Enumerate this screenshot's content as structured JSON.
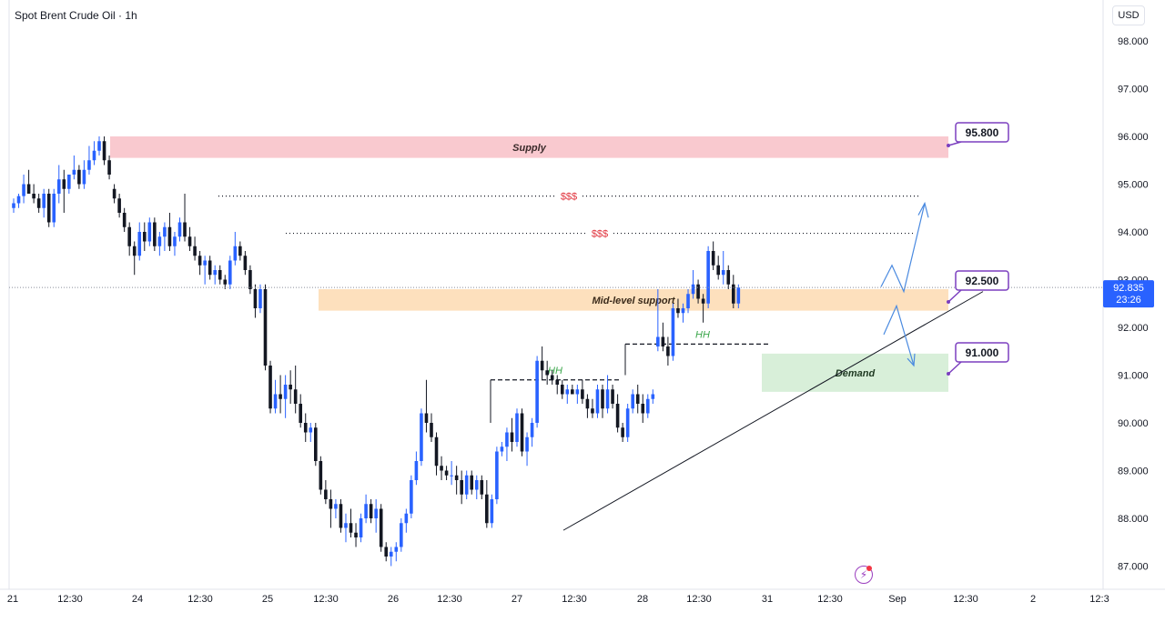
{
  "header": {
    "symbol_title": "Spot Brent Crude Oil · 1h",
    "currency_button": "USD"
  },
  "chart_data": {
    "type": "candlestick",
    "y_axis": {
      "ticks": [
        "87.000",
        "88.000",
        "89.000",
        "90.000",
        "91.000",
        "92.000",
        "93.000",
        "94.000",
        "95.000",
        "96.000",
        "97.000",
        "98.000"
      ]
    },
    "x_axis": {
      "ticks": [
        "21",
        "12:30",
        "24",
        "12:30",
        "25",
        "12:30",
        "26",
        "12:30",
        "27",
        "12:30",
        "28",
        "12:30",
        "31",
        "12:30",
        "Sep",
        "12:30",
        "2",
        "12:3"
      ]
    },
    "last_price": {
      "value": "92.835",
      "countdown": "23:26"
    },
    "zones": [
      {
        "label": "Supply",
        "from": 95.55,
        "to": 96.0,
        "color": "#f9c9cf",
        "text_color": "#3a2a2a"
      },
      {
        "label": "Mid-level support",
        "from": 92.35,
        "to": 92.8,
        "color": "#fde0bd",
        "text_color": "#3a2a1a"
      },
      {
        "label": "Demand",
        "from": 90.65,
        "to": 91.45,
        "color": "#d8efd9",
        "text_color": "#1f3a22"
      }
    ],
    "liquidity_lines": [
      {
        "label": "$$$",
        "level": 94.75,
        "color": "#e0303a"
      },
      {
        "label": "$$$",
        "level": 93.97,
        "color": "#e0303a"
      }
    ],
    "hh_labels": [
      {
        "label": "HH",
        "level": 90.9,
        "color": "#3aa64a"
      },
      {
        "label": "HH",
        "level": 91.65,
        "color": "#3aa64a"
      }
    ],
    "price_callouts": [
      {
        "label": "95.800",
        "target": 95.8
      },
      {
        "label": "92.500",
        "target": 92.5
      },
      {
        "label": "91.000",
        "target": 91.0
      }
    ],
    "colors": {
      "up": "#2962ff",
      "down": "#131722",
      "callout_border": "#7b3fbf",
      "trendline": "#131722",
      "projection": "#4a8ae0",
      "last_price_bg": "#2962ff"
    },
    "candles": [
      [
        94.5,
        94.7,
        94.4,
        94.6
      ],
      [
        94.6,
        94.8,
        94.5,
        94.75
      ],
      [
        94.75,
        95.2,
        94.6,
        95.0
      ],
      [
        95.0,
        95.3,
        94.8,
        94.8
      ],
      [
        94.8,
        95.0,
        94.6,
        94.7
      ],
      [
        94.7,
        94.8,
        94.4,
        94.5
      ],
      [
        94.5,
        94.9,
        94.3,
        94.8
      ],
      [
        94.8,
        94.9,
        94.1,
        94.2
      ],
      [
        94.2,
        94.9,
        94.1,
        94.8
      ],
      [
        94.8,
        95.4,
        94.6,
        95.1
      ],
      [
        95.1,
        95.3,
        94.4,
        94.9
      ],
      [
        94.9,
        95.2,
        94.8,
        95.2
      ],
      [
        95.2,
        95.6,
        95.1,
        95.3
      ],
      [
        95.3,
        95.4,
        94.9,
        95.0
      ],
      [
        95.0,
        95.5,
        94.9,
        95.3
      ],
      [
        95.3,
        95.8,
        95.2,
        95.5
      ],
      [
        95.5,
        95.9,
        95.4,
        95.7
      ],
      [
        95.7,
        96.0,
        95.6,
        95.9
      ],
      [
        95.9,
        96.0,
        95.4,
        95.5
      ],
      [
        95.5,
        95.6,
        95.1,
        95.2
      ],
      [
        94.9,
        95.0,
        94.6,
        94.7
      ],
      [
        94.7,
        94.8,
        94.3,
        94.4
      ],
      [
        94.4,
        94.5,
        94.0,
        94.1
      ],
      [
        94.1,
        94.2,
        93.5,
        93.7
      ],
      [
        93.7,
        93.8,
        93.1,
        93.5
      ],
      [
        93.5,
        94.2,
        93.4,
        94.0
      ],
      [
        94.0,
        94.2,
        93.6,
        93.8
      ],
      [
        93.8,
        94.3,
        93.7,
        94.2
      ],
      [
        94.2,
        94.3,
        93.6,
        93.7
      ],
      [
        93.7,
        94.0,
        93.5,
        93.9
      ],
      [
        93.9,
        94.2,
        93.6,
        94.1
      ],
      [
        94.1,
        94.4,
        93.6,
        93.7
      ],
      [
        93.7,
        94.0,
        93.5,
        93.9
      ],
      [
        93.9,
        94.3,
        93.8,
        94.2
      ],
      [
        94.2,
        94.8,
        93.8,
        93.9
      ],
      [
        93.9,
        94.1,
        93.6,
        93.7
      ],
      [
        93.7,
        93.9,
        93.4,
        93.5
      ],
      [
        93.5,
        93.6,
        93.1,
        93.3
      ],
      [
        93.3,
        93.5,
        92.9,
        93.4
      ],
      [
        93.4,
        93.5,
        93.0,
        93.1
      ],
      [
        93.1,
        93.3,
        92.9,
        93.2
      ],
      [
        93.2,
        93.3,
        92.9,
        93.0
      ],
      [
        93.0,
        93.1,
        92.8,
        92.9
      ],
      [
        92.9,
        93.5,
        92.8,
        93.4
      ],
      [
        93.4,
        94.0,
        93.3,
        93.7
      ],
      [
        93.7,
        93.8,
        93.4,
        93.5
      ],
      [
        93.5,
        93.6,
        93.1,
        93.2
      ],
      [
        93.2,
        93.3,
        92.7,
        92.8
      ],
      [
        92.8,
        92.9,
        92.2,
        92.4
      ],
      [
        92.4,
        92.9,
        92.3,
        92.8
      ],
      [
        92.8,
        92.9,
        91.1,
        91.2
      ],
      [
        91.2,
        91.3,
        90.2,
        90.3
      ],
      [
        90.3,
        90.9,
        90.2,
        90.6
      ],
      [
        90.6,
        91.0,
        90.2,
        90.5
      ],
      [
        90.5,
        91.0,
        90.1,
        90.8
      ],
      [
        90.8,
        91.1,
        90.4,
        90.7
      ],
      [
        90.7,
        91.2,
        90.2,
        90.4
      ],
      [
        90.4,
        90.6,
        89.9,
        90.0
      ],
      [
        90.0,
        90.2,
        89.6,
        89.8
      ],
      [
        89.8,
        90.0,
        89.6,
        89.9
      ],
      [
        89.9,
        90.0,
        89.1,
        89.2
      ],
      [
        89.2,
        89.3,
        88.5,
        88.6
      ],
      [
        88.6,
        88.8,
        88.3,
        88.4
      ],
      [
        88.4,
        88.6,
        87.8,
        88.2
      ],
      [
        88.2,
        88.4,
        88.0,
        88.3
      ],
      [
        88.3,
        88.4,
        87.7,
        87.8
      ],
      [
        87.8,
        88.1,
        87.5,
        87.9
      ],
      [
        87.9,
        88.2,
        87.6,
        87.7
      ],
      [
        87.7,
        87.9,
        87.4,
        87.6
      ],
      [
        87.6,
        88.1,
        87.5,
        88.0
      ],
      [
        88.0,
        88.5,
        87.9,
        88.3
      ],
      [
        88.3,
        88.4,
        87.9,
        88.0
      ],
      [
        88.0,
        88.4,
        87.7,
        88.2
      ],
      [
        88.2,
        88.3,
        87.3,
        87.4
      ],
      [
        87.4,
        87.5,
        87.1,
        87.2
      ],
      [
        87.2,
        87.4,
        87.0,
        87.3
      ],
      [
        87.3,
        87.5,
        87.1,
        87.4
      ],
      [
        87.4,
        88.0,
        87.3,
        87.9
      ],
      [
        87.9,
        88.2,
        87.7,
        88.1
      ],
      [
        88.1,
        88.9,
        88.0,
        88.8
      ],
      [
        88.8,
        89.4,
        88.7,
        89.2
      ],
      [
        89.2,
        90.3,
        89.1,
        90.2
      ],
      [
        90.2,
        90.9,
        89.8,
        90.0
      ],
      [
        90.0,
        90.2,
        89.6,
        89.7
      ],
      [
        89.7,
        89.8,
        88.9,
        89.1
      ],
      [
        89.1,
        89.3,
        88.8,
        89.0
      ],
      [
        89.0,
        89.1,
        88.8,
        88.9
      ],
      [
        88.9,
        89.2,
        88.7,
        88.9
      ],
      [
        88.9,
        89.1,
        88.5,
        88.8
      ],
      [
        88.8,
        89.0,
        88.3,
        88.5
      ],
      [
        88.5,
        89.0,
        88.4,
        88.9
      ],
      [
        88.9,
        89.0,
        88.5,
        88.6
      ],
      [
        88.6,
        88.9,
        88.4,
        88.8
      ],
      [
        88.8,
        88.9,
        88.4,
        88.5
      ],
      [
        88.5,
        88.8,
        87.8,
        87.9
      ],
      [
        87.9,
        88.5,
        87.8,
        88.4
      ],
      [
        88.4,
        89.5,
        88.3,
        89.4
      ],
      [
        89.4,
        89.6,
        89.3,
        89.5
      ],
      [
        89.5,
        89.9,
        89.2,
        89.8
      ],
      [
        89.8,
        90.1,
        89.4,
        89.6
      ],
      [
        89.6,
        90.3,
        89.5,
        90.2
      ],
      [
        90.2,
        90.3,
        89.3,
        89.4
      ],
      [
        89.4,
        89.8,
        89.1,
        89.7
      ],
      [
        89.7,
        90.1,
        89.5,
        90.0
      ],
      [
        90.0,
        91.4,
        89.9,
        91.3
      ],
      [
        91.3,
        91.6,
        90.9,
        91.1
      ],
      [
        91.1,
        91.3,
        90.8,
        91.0
      ],
      [
        91.0,
        91.1,
        90.8,
        90.9
      ],
      [
        90.9,
        91.0,
        90.6,
        90.8
      ],
      [
        90.8,
        90.9,
        90.5,
        90.6
      ],
      [
        90.6,
        90.8,
        90.4,
        90.7
      ],
      [
        90.7,
        90.8,
        90.6,
        90.6
      ],
      [
        90.6,
        90.8,
        90.4,
        90.7
      ],
      [
        90.7,
        90.9,
        90.4,
        90.5
      ],
      [
        90.5,
        90.6,
        90.1,
        90.3
      ],
      [
        90.3,
        90.5,
        90.1,
        90.2
      ],
      [
        90.2,
        90.8,
        90.1,
        90.7
      ],
      [
        90.7,
        90.8,
        90.1,
        90.3
      ],
      [
        90.3,
        91.0,
        90.2,
        90.7
      ],
      [
        90.7,
        90.8,
        90.3,
        90.4
      ],
      [
        90.4,
        90.6,
        89.8,
        89.9
      ],
      [
        89.9,
        90.0,
        89.6,
        89.7
      ],
      [
        89.7,
        90.4,
        89.6,
        90.3
      ],
      [
        90.3,
        90.7,
        90.2,
        90.6
      ],
      [
        90.6,
        90.8,
        90.2,
        90.4
      ],
      [
        90.4,
        90.6,
        90.0,
        90.2
      ],
      [
        90.2,
        90.6,
        90.1,
        90.5
      ],
      [
        90.5,
        90.7,
        90.4,
        90.6
      ],
      [
        91.6,
        92.8,
        91.5,
        91.8
      ],
      [
        91.8,
        92.1,
        91.5,
        91.6
      ],
      [
        91.6,
        91.8,
        91.2,
        91.4
      ],
      [
        91.4,
        92.5,
        91.3,
        92.4
      ],
      [
        92.4,
        92.6,
        92.2,
        92.3
      ],
      [
        92.3,
        92.5,
        92.1,
        92.4
      ],
      [
        92.4,
        92.8,
        92.3,
        92.7
      ],
      [
        92.7,
        93.2,
        92.6,
        92.9
      ],
      [
        92.9,
        93.0,
        92.5,
        92.6
      ],
      [
        92.6,
        92.7,
        92.1,
        92.5
      ],
      [
        92.5,
        93.7,
        92.4,
        93.6
      ],
      [
        93.6,
        93.8,
        93.2,
        93.3
      ],
      [
        93.3,
        93.5,
        93.0,
        93.1
      ],
      [
        93.1,
        93.6,
        92.9,
        93.2
      ],
      [
        93.2,
        93.3,
        92.8,
        92.9
      ],
      [
        92.9,
        93.1,
        92.4,
        92.5
      ],
      [
        92.5,
        92.9,
        92.4,
        92.835
      ]
    ]
  }
}
